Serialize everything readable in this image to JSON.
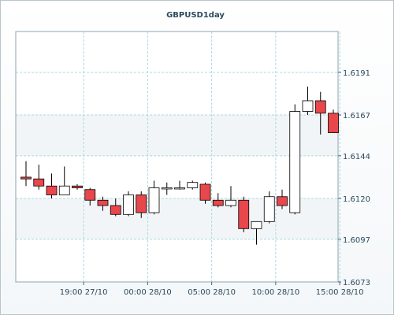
{
  "chart_data": {
    "type": "candlestick",
    "title": "GBPUSD1day",
    "y_ticks": [
      1.6191,
      1.6167,
      1.6144,
      1.612,
      1.6097,
      1.6073
    ],
    "y_tick_labels": [
      "1.6191",
      "1.6167",
      "1.6144",
      "1.6120",
      "1.6097",
      "1.6073"
    ],
    "ylim": [
      1.6073,
      1.6214
    ],
    "x_tick_labels": [
      "19:00 27/10",
      "00:00 28/10",
      "05:00 28/10",
      "10:00 28/10",
      "15:00 28/10"
    ],
    "x_tick_after_candle": [
      4.5,
      9.5,
      14.5,
      19.5,
      24.5
    ],
    "grid": true,
    "up_color": "#ffffff",
    "down_color": "#e8474c",
    "outline_color": "#000000",
    "candles": [
      {
        "open": 1.6132,
        "high": 1.6141,
        "low": 1.6127,
        "close": 1.6131
      },
      {
        "open": 1.6131,
        "high": 1.6139,
        "low": 1.6125,
        "close": 1.6127
      },
      {
        "open": 1.6127,
        "high": 1.6134,
        "low": 1.612,
        "close": 1.6122
      },
      {
        "open": 1.6122,
        "high": 1.6138,
        "low": 1.6122,
        "close": 1.6127
      },
      {
        "open": 1.6127,
        "high": 1.6128,
        "low": 1.6125,
        "close": 1.6126
      },
      {
        "open": 1.6125,
        "high": 1.6126,
        "low": 1.6116,
        "close": 1.6119
      },
      {
        "open": 1.6119,
        "high": 1.6121,
        "low": 1.6113,
        "close": 1.6116
      },
      {
        "open": 1.6116,
        "high": 1.612,
        "low": 1.611,
        "close": 1.6111
      },
      {
        "open": 1.6111,
        "high": 1.6124,
        "low": 1.611,
        "close": 1.6122
      },
      {
        "open": 1.6122,
        "high": 1.6124,
        "low": 1.6109,
        "close": 1.6112
      },
      {
        "open": 1.6112,
        "high": 1.613,
        "low": 1.6111,
        "close": 1.6126
      },
      {
        "open": 1.6126,
        "high": 1.6129,
        "low": 1.6122,
        "close": 1.6126
      },
      {
        "open": 1.6126,
        "high": 1.613,
        "low": 1.6125,
        "close": 1.6126
      },
      {
        "open": 1.6126,
        "high": 1.613,
        "low": 1.6125,
        "close": 1.6129
      },
      {
        "open": 1.6128,
        "high": 1.6129,
        "low": 1.6117,
        "close": 1.6119
      },
      {
        "open": 1.6119,
        "high": 1.6123,
        "low": 1.6115,
        "close": 1.6116
      },
      {
        "open": 1.6116,
        "high": 1.6127,
        "low": 1.6115,
        "close": 1.6119
      },
      {
        "open": 1.6119,
        "high": 1.6121,
        "low": 1.6101,
        "close": 1.6103
      },
      {
        "open": 1.6103,
        "high": 1.6107,
        "low": 1.6094,
        "close": 1.6107
      },
      {
        "open": 1.6107,
        "high": 1.6124,
        "low": 1.6106,
        "close": 1.6121
      },
      {
        "open": 1.6121,
        "high": 1.6125,
        "low": 1.6114,
        "close": 1.6116
      },
      {
        "open": 1.6112,
        "high": 1.6173,
        "low": 1.6111,
        "close": 1.6169
      },
      {
        "open": 1.6169,
        "high": 1.6183,
        "low": 1.6167,
        "close": 1.6175
      },
      {
        "open": 1.6175,
        "high": 1.618,
        "low": 1.6156,
        "close": 1.6168
      },
      {
        "open": 1.6168,
        "high": 1.617,
        "low": 1.6157,
        "close": 1.6157
      }
    ]
  }
}
